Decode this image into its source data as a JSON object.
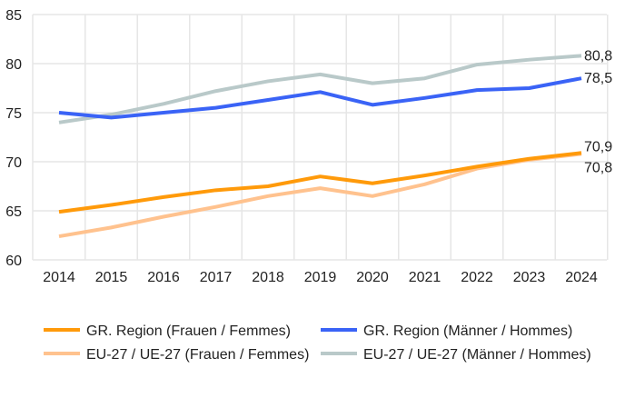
{
  "chart_data": {
    "type": "line",
    "title": "",
    "xlabel": "",
    "ylabel": "",
    "x": [
      2014,
      2015,
      2016,
      2017,
      2018,
      2019,
      2020,
      2021,
      2022,
      2023,
      2024
    ],
    "ylim": [
      60,
      85
    ],
    "yticks": [
      60,
      65,
      70,
      75,
      80,
      85
    ],
    "grid": true,
    "legend_position": "bottom",
    "series": [
      {
        "name": "GR. Region (Frauen / Femmes)",
        "color": "#ff9a0a",
        "values": [
          64.9,
          65.6,
          66.4,
          67.1,
          67.5,
          68.5,
          67.8,
          68.6,
          69.5,
          70.3,
          70.9
        ],
        "end_label": "70,9"
      },
      {
        "name": "GR. Region (Männer / Hommes)",
        "color": "#3a63f6",
        "values": [
          75.0,
          74.5,
          75.0,
          75.5,
          76.3,
          77.1,
          75.8,
          76.5,
          77.3,
          77.5,
          78.5
        ],
        "end_label": "78,5"
      },
      {
        "name": "EU-27 / UE-27 (Frauen / Femmes)",
        "color": "#ffc28e",
        "values": [
          62.4,
          63.3,
          64.4,
          65.4,
          66.5,
          67.3,
          66.5,
          67.7,
          69.3,
          70.2,
          70.8
        ],
        "end_label": "70,8"
      },
      {
        "name": "EU-27 / UE-27 (Männer / Hommes)",
        "color": "#b9c9c9",
        "values": [
          74.0,
          74.8,
          75.9,
          77.2,
          78.2,
          78.9,
          78.0,
          78.5,
          79.9,
          80.4,
          80.8
        ],
        "end_label": "80,8"
      }
    ]
  }
}
